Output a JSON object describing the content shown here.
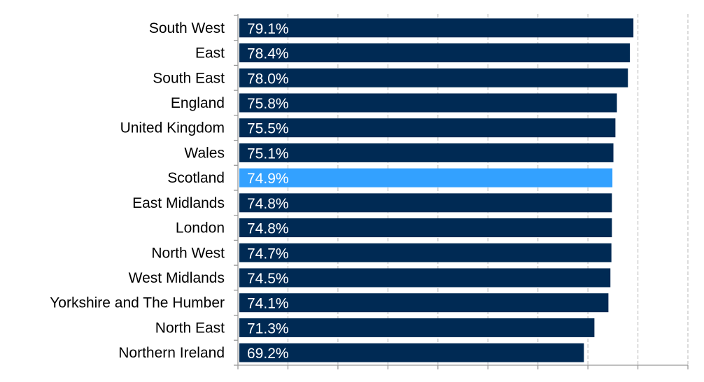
{
  "chart_data": {
    "type": "bar",
    "orientation": "horizontal",
    "categories": [
      "South West",
      "East",
      "South East",
      "England",
      "United Kingdom",
      "Wales",
      "Scotland",
      "East Midlands",
      "London",
      "North West ",
      "West Midlands",
      "Yorkshire and The Humber",
      "North East",
      "Northern Ireland "
    ],
    "values": [
      79.1,
      78.4,
      78.0,
      75.8,
      75.5,
      75.1,
      74.9,
      74.8,
      74.8,
      74.7,
      74.5,
      74.1,
      71.3,
      69.2
    ],
    "value_labels": [
      "79.1%",
      "78.4%",
      "78.0%",
      "75.8%",
      "75.5%",
      "75.1%",
      "74.9%",
      "74.8%",
      "74.8%",
      "74.7%",
      "74.5%",
      "74.1%",
      "71.3%",
      "69.2%"
    ],
    "highlight_category": "Scotland",
    "xlim": [
      0,
      90
    ],
    "grid": "vertical dashed",
    "legend": "none",
    "colors": {
      "bar": "#002a54",
      "highlight": "#33a1ff",
      "grid": "#c8c8c8",
      "axis": "#999999"
    }
  }
}
